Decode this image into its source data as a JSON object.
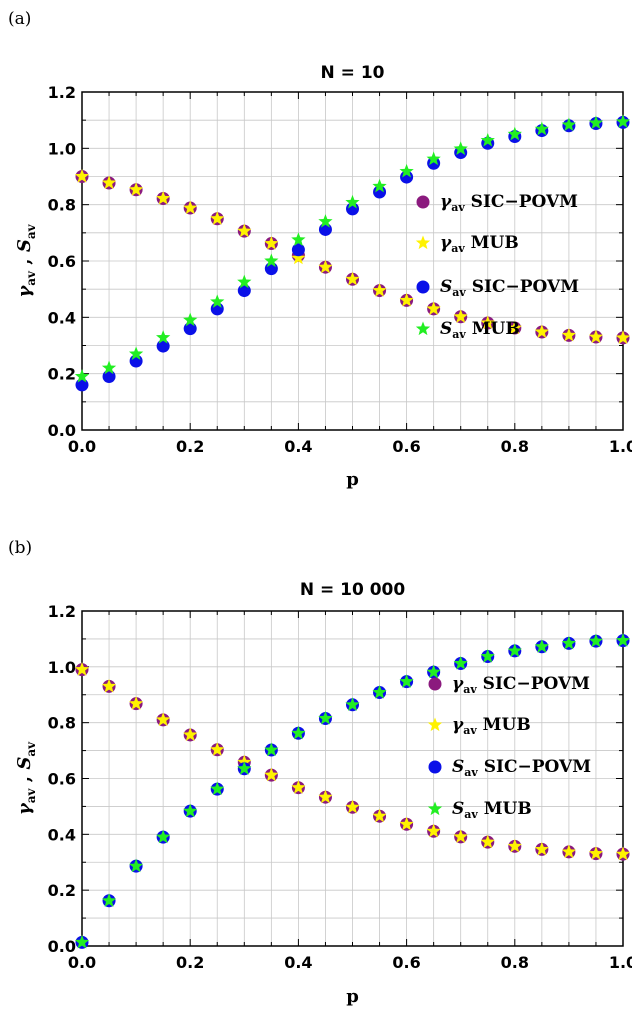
{
  "chart_data": [
    {
      "panel_label": "(a)",
      "type": "scatter",
      "title": "N = 10",
      "xlabel": "p",
      "ylabel": {
        "parts": [
          "γ",
          "av",
          " , ",
          "S",
          "av"
        ]
      },
      "xlim": [
        0,
        1
      ],
      "ylim": [
        0,
        1.2
      ],
      "xticks": [
        "0.0",
        "0.2",
        "0.4",
        "0.6",
        "0.8",
        "1.0"
      ],
      "yticks": [
        "0.0",
        "0.2",
        "0.4",
        "0.6",
        "0.8",
        "1.0",
        "1.2"
      ],
      "grid": true,
      "legend_position": "right",
      "x": [
        0,
        0.05,
        0.1,
        0.15,
        0.2,
        0.25,
        0.3,
        0.35,
        0.4,
        0.45,
        0.5,
        0.55,
        0.6,
        0.65,
        0.7,
        0.75,
        0.8,
        0.85,
        0.9,
        0.95,
        1.0
      ],
      "series": [
        {
          "sym": "γ",
          "sub": "av",
          "rest": " SIC−POVM",
          "marker": "circle",
          "color": "#8B1A7E",
          "values": [
            0.9,
            0.877,
            0.853,
            0.822,
            0.788,
            0.75,
            0.706,
            0.662,
            0.62,
            0.578,
            0.535,
            0.495,
            0.46,
            0.43,
            0.402,
            0.38,
            0.362,
            0.348,
            0.336,
            0.33,
            0.327
          ]
        },
        {
          "sym": "γ",
          "sub": "av",
          "rest": " MUB",
          "marker": "star",
          "color": "#FFF200",
          "values": [
            0.9,
            0.877,
            0.853,
            0.822,
            0.788,
            0.75,
            0.706,
            0.662,
            0.61,
            0.578,
            0.535,
            0.495,
            0.46,
            0.43,
            0.402,
            0.38,
            0.362,
            0.348,
            0.336,
            0.33,
            0.327
          ]
        },
        {
          "sym": "S",
          "sub": "av",
          "rest": " SIC−POVM",
          "marker": "circle",
          "color": "#0A10E8",
          "values": [
            0.16,
            0.19,
            0.245,
            0.298,
            0.36,
            0.43,
            0.495,
            0.573,
            0.64,
            0.712,
            0.785,
            0.845,
            0.898,
            0.947,
            0.985,
            1.018,
            1.042,
            1.063,
            1.08,
            1.088,
            1.092
          ]
        },
        {
          "sym": "S",
          "sub": "av",
          "rest": " MUB",
          "marker": "star",
          "color": "#22EE22",
          "values": [
            0.19,
            0.22,
            0.27,
            0.328,
            0.39,
            0.455,
            0.525,
            0.6,
            0.675,
            0.74,
            0.808,
            0.865,
            0.918,
            0.962,
            0.998,
            1.028,
            1.05,
            1.068,
            1.083,
            1.09,
            1.094
          ]
        }
      ]
    },
    {
      "panel_label": "(b)",
      "type": "scatter",
      "title": "N = 10 000",
      "xlabel": "p",
      "ylabel": {
        "parts": [
          "γ",
          "av",
          " , ",
          "S",
          "av"
        ]
      },
      "xlim": [
        0,
        1
      ],
      "ylim": [
        0,
        1.2
      ],
      "xticks": [
        "0.0",
        "0.2",
        "0.4",
        "0.6",
        "0.8",
        "1.0"
      ],
      "yticks": [
        "0.0",
        "0.2",
        "0.4",
        "0.6",
        "0.8",
        "1.0",
        "1.2"
      ],
      "grid": true,
      "legend_position": "right",
      "x": [
        0,
        0.05,
        0.1,
        0.15,
        0.2,
        0.25,
        0.3,
        0.35,
        0.4,
        0.45,
        0.5,
        0.55,
        0.6,
        0.65,
        0.7,
        0.75,
        0.8,
        0.85,
        0.9,
        0.95,
        1.0
      ],
      "series": [
        {
          "sym": "γ",
          "sub": "av",
          "rest": " SIC−POVM",
          "marker": "circle",
          "color": "#8B1A7E",
          "values": [
            0.99,
            0.93,
            0.868,
            0.81,
            0.756,
            0.703,
            0.658,
            0.612,
            0.567,
            0.533,
            0.497,
            0.465,
            0.436,
            0.411,
            0.391,
            0.372,
            0.357,
            0.346,
            0.337,
            0.331,
            0.329
          ]
        },
        {
          "sym": "γ",
          "sub": "av",
          "rest": " MUB",
          "marker": "star",
          "color": "#FFF200",
          "values": [
            0.99,
            0.93,
            0.868,
            0.81,
            0.756,
            0.703,
            0.658,
            0.612,
            0.567,
            0.533,
            0.497,
            0.465,
            0.436,
            0.411,
            0.391,
            0.372,
            0.357,
            0.346,
            0.337,
            0.331,
            0.329
          ]
        },
        {
          "sym": "S",
          "sub": "av",
          "rest": " SIC−POVM",
          "marker": "circle",
          "color": "#0A10E8",
          "values": [
            0.013,
            0.162,
            0.286,
            0.39,
            0.483,
            0.562,
            0.635,
            0.702,
            0.762,
            0.815,
            0.864,
            0.908,
            0.947,
            0.981,
            1.012,
            1.037,
            1.057,
            1.072,
            1.084,
            1.092,
            1.094
          ]
        },
        {
          "sym": "S",
          "sub": "av",
          "rest": " MUB",
          "marker": "star",
          "color": "#22EE22",
          "values": [
            0.013,
            0.162,
            0.286,
            0.39,
            0.483,
            0.562,
            0.635,
            0.702,
            0.762,
            0.815,
            0.864,
            0.908,
            0.947,
            0.981,
            1.012,
            1.037,
            1.057,
            1.072,
            1.084,
            1.092,
            1.094
          ]
        }
      ]
    }
  ]
}
